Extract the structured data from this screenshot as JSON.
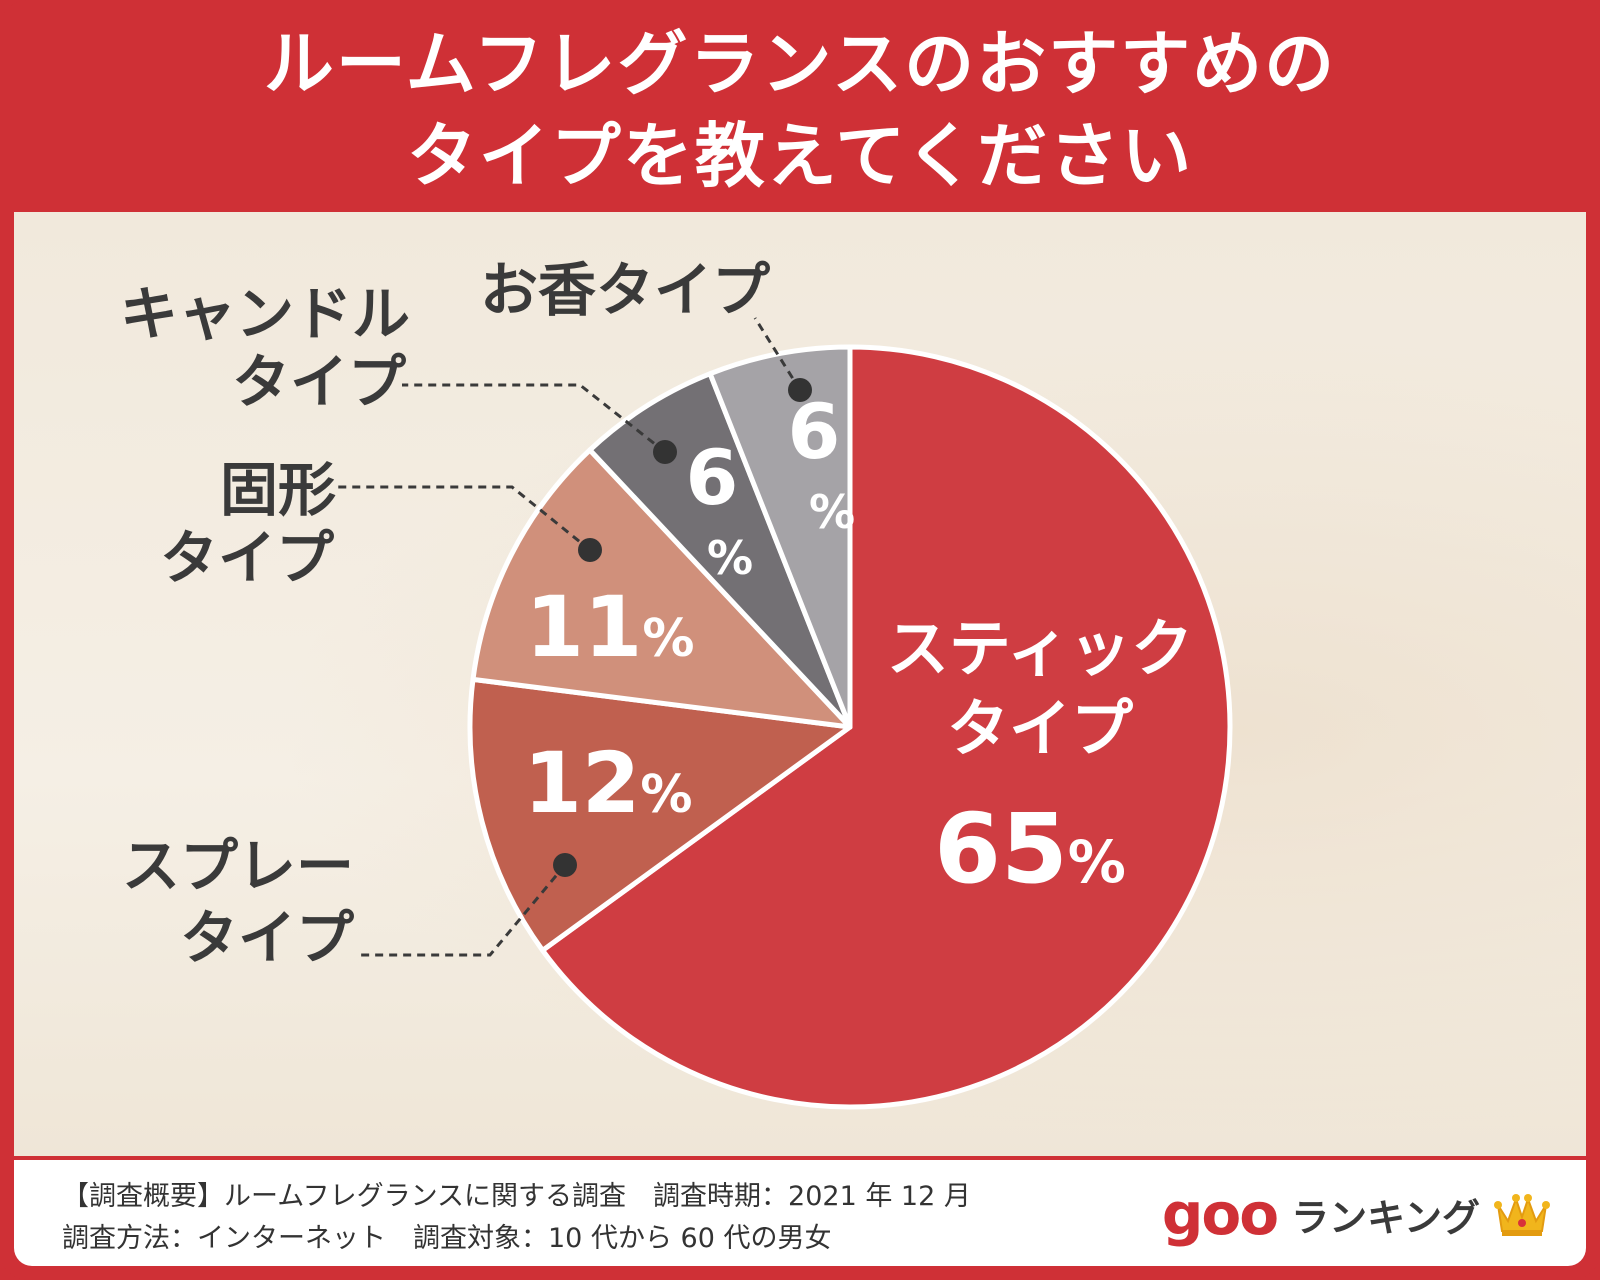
{
  "title_lines": [
    "ルームフレグランスのおすすめの",
    "タイプを教えてください"
  ],
  "chart_data": {
    "type": "pie",
    "title": "ルームフレグランスのおすすめのタイプを教えてください",
    "unit": "%",
    "slices": [
      {
        "label_lines": [
          "スティック",
          "タイプ"
        ],
        "value": 65,
        "color": "#cf3d42"
      },
      {
        "label_lines": [
          "スプレー",
          "タイプ"
        ],
        "value": 12,
        "color": "#c0604f"
      },
      {
        "label_lines": [
          "固形",
          "タイプ"
        ],
        "value": 11,
        "color": "#d0907b"
      },
      {
        "label_lines": [
          "キャンドル",
          "タイプ"
        ],
        "value": 6,
        "color": "#737074"
      },
      {
        "label_lines": [
          "お香タイプ"
        ],
        "value": 6,
        "color": "#a5a3a7"
      }
    ]
  },
  "footer": {
    "line1": "【調査概要】ルームフレグランスに関する調査　調査時期：2021 年 12 月",
    "line2": "調査方法：インターネット　調査対象：10 代から 60 代の男女"
  },
  "logo": {
    "brand": "goo",
    "text": "ランキング",
    "icon": "crown-icon"
  }
}
